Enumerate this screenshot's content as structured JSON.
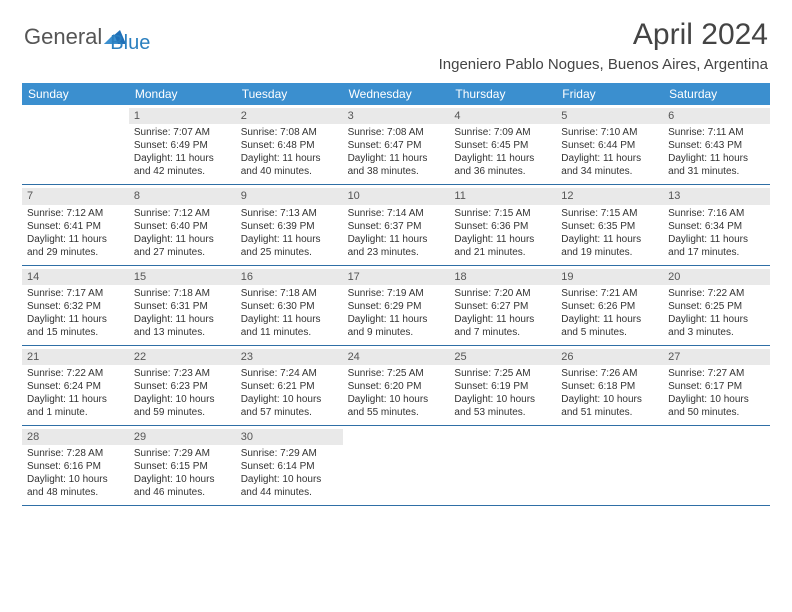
{
  "logo": {
    "text1": "General",
    "text2": "Blue"
  },
  "title": "April 2024",
  "location": "Ingeniero Pablo Nogues, Buenos Aires, Argentina",
  "colors": {
    "header_bg": "#3b8fcf",
    "row_border": "#2f6fa6",
    "daynum_bg": "#e9e9e9",
    "logo_blue": "#2a7fbf"
  },
  "dow": [
    "Sunday",
    "Monday",
    "Tuesday",
    "Wednesday",
    "Thursday",
    "Friday",
    "Saturday"
  ],
  "weeks": [
    [
      {
        "n": "",
        "sr": "",
        "ss": "",
        "dl": ""
      },
      {
        "n": "1",
        "sr": "Sunrise: 7:07 AM",
        "ss": "Sunset: 6:49 PM",
        "dl": "Daylight: 11 hours and 42 minutes."
      },
      {
        "n": "2",
        "sr": "Sunrise: 7:08 AM",
        "ss": "Sunset: 6:48 PM",
        "dl": "Daylight: 11 hours and 40 minutes."
      },
      {
        "n": "3",
        "sr": "Sunrise: 7:08 AM",
        "ss": "Sunset: 6:47 PM",
        "dl": "Daylight: 11 hours and 38 minutes."
      },
      {
        "n": "4",
        "sr": "Sunrise: 7:09 AM",
        "ss": "Sunset: 6:45 PM",
        "dl": "Daylight: 11 hours and 36 minutes."
      },
      {
        "n": "5",
        "sr": "Sunrise: 7:10 AM",
        "ss": "Sunset: 6:44 PM",
        "dl": "Daylight: 11 hours and 34 minutes."
      },
      {
        "n": "6",
        "sr": "Sunrise: 7:11 AM",
        "ss": "Sunset: 6:43 PM",
        "dl": "Daylight: 11 hours and 31 minutes."
      }
    ],
    [
      {
        "n": "7",
        "sr": "Sunrise: 7:12 AM",
        "ss": "Sunset: 6:41 PM",
        "dl": "Daylight: 11 hours and 29 minutes."
      },
      {
        "n": "8",
        "sr": "Sunrise: 7:12 AM",
        "ss": "Sunset: 6:40 PM",
        "dl": "Daylight: 11 hours and 27 minutes."
      },
      {
        "n": "9",
        "sr": "Sunrise: 7:13 AM",
        "ss": "Sunset: 6:39 PM",
        "dl": "Daylight: 11 hours and 25 minutes."
      },
      {
        "n": "10",
        "sr": "Sunrise: 7:14 AM",
        "ss": "Sunset: 6:37 PM",
        "dl": "Daylight: 11 hours and 23 minutes."
      },
      {
        "n": "11",
        "sr": "Sunrise: 7:15 AM",
        "ss": "Sunset: 6:36 PM",
        "dl": "Daylight: 11 hours and 21 minutes."
      },
      {
        "n": "12",
        "sr": "Sunrise: 7:15 AM",
        "ss": "Sunset: 6:35 PM",
        "dl": "Daylight: 11 hours and 19 minutes."
      },
      {
        "n": "13",
        "sr": "Sunrise: 7:16 AM",
        "ss": "Sunset: 6:34 PM",
        "dl": "Daylight: 11 hours and 17 minutes."
      }
    ],
    [
      {
        "n": "14",
        "sr": "Sunrise: 7:17 AM",
        "ss": "Sunset: 6:32 PM",
        "dl": "Daylight: 11 hours and 15 minutes."
      },
      {
        "n": "15",
        "sr": "Sunrise: 7:18 AM",
        "ss": "Sunset: 6:31 PM",
        "dl": "Daylight: 11 hours and 13 minutes."
      },
      {
        "n": "16",
        "sr": "Sunrise: 7:18 AM",
        "ss": "Sunset: 6:30 PM",
        "dl": "Daylight: 11 hours and 11 minutes."
      },
      {
        "n": "17",
        "sr": "Sunrise: 7:19 AM",
        "ss": "Sunset: 6:29 PM",
        "dl": "Daylight: 11 hours and 9 minutes."
      },
      {
        "n": "18",
        "sr": "Sunrise: 7:20 AM",
        "ss": "Sunset: 6:27 PM",
        "dl": "Daylight: 11 hours and 7 minutes."
      },
      {
        "n": "19",
        "sr": "Sunrise: 7:21 AM",
        "ss": "Sunset: 6:26 PM",
        "dl": "Daylight: 11 hours and 5 minutes."
      },
      {
        "n": "20",
        "sr": "Sunrise: 7:22 AM",
        "ss": "Sunset: 6:25 PM",
        "dl": "Daylight: 11 hours and 3 minutes."
      }
    ],
    [
      {
        "n": "21",
        "sr": "Sunrise: 7:22 AM",
        "ss": "Sunset: 6:24 PM",
        "dl": "Daylight: 11 hours and 1 minute."
      },
      {
        "n": "22",
        "sr": "Sunrise: 7:23 AM",
        "ss": "Sunset: 6:23 PM",
        "dl": "Daylight: 10 hours and 59 minutes."
      },
      {
        "n": "23",
        "sr": "Sunrise: 7:24 AM",
        "ss": "Sunset: 6:21 PM",
        "dl": "Daylight: 10 hours and 57 minutes."
      },
      {
        "n": "24",
        "sr": "Sunrise: 7:25 AM",
        "ss": "Sunset: 6:20 PM",
        "dl": "Daylight: 10 hours and 55 minutes."
      },
      {
        "n": "25",
        "sr": "Sunrise: 7:25 AM",
        "ss": "Sunset: 6:19 PM",
        "dl": "Daylight: 10 hours and 53 minutes."
      },
      {
        "n": "26",
        "sr": "Sunrise: 7:26 AM",
        "ss": "Sunset: 6:18 PM",
        "dl": "Daylight: 10 hours and 51 minutes."
      },
      {
        "n": "27",
        "sr": "Sunrise: 7:27 AM",
        "ss": "Sunset: 6:17 PM",
        "dl": "Daylight: 10 hours and 50 minutes."
      }
    ],
    [
      {
        "n": "28",
        "sr": "Sunrise: 7:28 AM",
        "ss": "Sunset: 6:16 PM",
        "dl": "Daylight: 10 hours and 48 minutes."
      },
      {
        "n": "29",
        "sr": "Sunrise: 7:29 AM",
        "ss": "Sunset: 6:15 PM",
        "dl": "Daylight: 10 hours and 46 minutes."
      },
      {
        "n": "30",
        "sr": "Sunrise: 7:29 AM",
        "ss": "Sunset: 6:14 PM",
        "dl": "Daylight: 10 hours and 44 minutes."
      },
      {
        "n": "",
        "sr": "",
        "ss": "",
        "dl": ""
      },
      {
        "n": "",
        "sr": "",
        "ss": "",
        "dl": ""
      },
      {
        "n": "",
        "sr": "",
        "ss": "",
        "dl": ""
      },
      {
        "n": "",
        "sr": "",
        "ss": "",
        "dl": ""
      }
    ]
  ]
}
